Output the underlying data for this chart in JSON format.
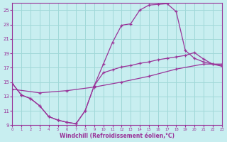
{
  "xlabel": "Windchill (Refroidissement éolien,°C)",
  "bg_color": "#c8eef0",
  "line_color": "#993399",
  "grid_color": "#a0d8d8",
  "xlim": [
    0,
    23
  ],
  "ylim": [
    9,
    26
  ],
  "xticks": [
    0,
    1,
    2,
    3,
    4,
    5,
    6,
    7,
    8,
    9,
    10,
    11,
    12,
    13,
    14,
    15,
    16,
    17,
    18,
    19,
    20,
    21,
    22,
    23
  ],
  "yticks": [
    9,
    11,
    13,
    15,
    17,
    19,
    21,
    23,
    25
  ],
  "curve1_x": [
    0,
    1,
    2,
    3,
    4,
    5,
    6,
    7,
    8,
    9,
    10,
    11,
    12,
    13,
    14,
    15,
    16,
    17,
    18,
    19,
    20,
    21,
    22,
    23
  ],
  "curve1_y": [
    14.8,
    13.2,
    12.7,
    11.7,
    10.2,
    9.7,
    9.4,
    9.2,
    11.0,
    14.5,
    17.5,
    20.5,
    22.9,
    23.1,
    25.0,
    25.7,
    25.8,
    25.9,
    24.8,
    19.4,
    18.3,
    17.8,
    17.5,
    17.2
  ],
  "curve2_x": [
    0,
    1,
    2,
    3,
    4,
    5,
    6,
    7,
    8,
    9,
    10,
    11,
    12,
    13,
    14,
    15,
    16,
    17,
    18,
    19,
    20,
    21,
    22,
    23
  ],
  "curve2_y": [
    14.8,
    13.2,
    12.7,
    11.7,
    10.2,
    9.7,
    9.4,
    9.2,
    11.0,
    14.5,
    16.3,
    16.7,
    17.1,
    17.3,
    17.6,
    17.8,
    18.1,
    18.3,
    18.5,
    18.7,
    19.1,
    18.2,
    17.5,
    17.3
  ],
  "curve3_x": [
    0,
    3,
    6,
    9,
    12,
    15,
    18,
    21,
    23
  ],
  "curve3_y": [
    14.0,
    13.5,
    13.8,
    14.3,
    15.0,
    15.8,
    16.8,
    17.5,
    17.5
  ]
}
